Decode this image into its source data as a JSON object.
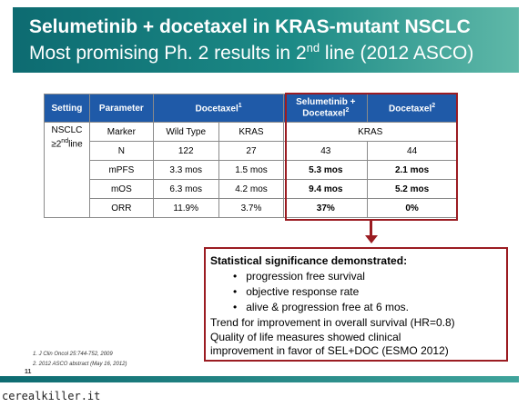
{
  "header": {
    "title_line1": "Selumetinib + docetaxel in KRAS-mutant NSCLC",
    "title_line2_pre": "Most promising Ph. 2 results in 2",
    "title_line2_sup": "nd",
    "title_line2_post": " line (2012 ASCO)"
  },
  "table": {
    "headers": {
      "setting": "Setting",
      "parameter": "Parameter",
      "docetaxel1": "Docetaxel",
      "docetaxel1_sup": "1",
      "selumetinib_line1": "Selumetinib +",
      "selumetinib_line2": "Docetaxel",
      "selumetinib_sup": "2",
      "docetaxel2": "Docetaxel",
      "docetaxel2_sup": "2"
    },
    "setting_line1": "NSCLC",
    "setting_line2": "≥2",
    "setting_sup": "nd",
    "setting_post": "line",
    "marker_row": {
      "label": "Marker",
      "wild": "Wild Type",
      "kras1": "KRAS",
      "kras2": "KRAS"
    },
    "rows": [
      {
        "label": "N",
        "wt": "122",
        "kras": "27",
        "sel": "43",
        "doc": "44"
      },
      {
        "label": "mPFS",
        "wt": "3.3 mos",
        "kras": "1.5 mos",
        "sel": "5.3 mos",
        "doc": "2.1 mos"
      },
      {
        "label": "mOS",
        "wt": "6.3 mos",
        "kras": "4.2 mos",
        "sel": "9.4 mos",
        "doc": "5.2 mos"
      },
      {
        "label": "ORR",
        "wt": "11.9%",
        "kras": "3.7%",
        "sel": "37%",
        "doc": "0%"
      }
    ]
  },
  "callout": {
    "heading": "Statistical significance demonstrated:",
    "bullets": [
      "progression free survival",
      "objective response rate",
      "alive & progression free at 6 mos."
    ],
    "line1": "Trend for improvement in overall survival (HR=0.8)",
    "line2": "Quality of life measures showed clinical",
    "line3": "improvement in favor of SEL+DOC (ESMO 2012)"
  },
  "footnotes": [
    "1. J Clin Oncol 25:744-752, 2009",
    "2. 2012 ASCO abstract (May 16, 2012)"
  ],
  "page_number": "11",
  "watermark": "cerealkiller.it",
  "colors": {
    "header": "#0d6b71",
    "table_header": "#1f5aa8",
    "highlight": "#9b1c22"
  }
}
